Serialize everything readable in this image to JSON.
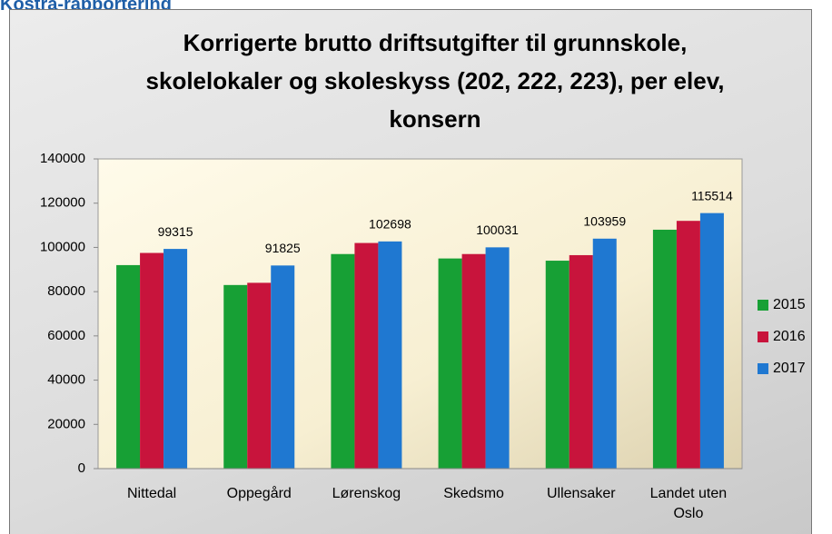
{
  "heading": "Kostra-rapportering",
  "chart_data": {
    "type": "bar",
    "title": "Korrigerte brutto driftsutgifter til grunnskole, skolelokaler og skoleskyss (202, 222, 223), per elev, konsern",
    "categories": [
      "Nittedal",
      "Oppegård",
      "Lørenskog",
      "Skedsmo",
      "Ullensaker",
      "Landet uten Oslo"
    ],
    "series": [
      {
        "name": "2015",
        "color": "#17a035",
        "values": [
          92000,
          83000,
          97000,
          95000,
          94000,
          108000
        ]
      },
      {
        "name": "2016",
        "color": "#c8143c",
        "values": [
          97500,
          84000,
          102000,
          97000,
          96500,
          112000
        ]
      },
      {
        "name": "2017",
        "color": "#1f78d1",
        "values": [
          99315,
          91825,
          102698,
          100031,
          103959,
          115514
        ],
        "data_labels": true
      }
    ],
    "ylim": [
      0,
      140000
    ],
    "yticks": [
      0,
      20000,
      40000,
      60000,
      80000,
      100000,
      120000,
      140000
    ],
    "legend": "right"
  }
}
